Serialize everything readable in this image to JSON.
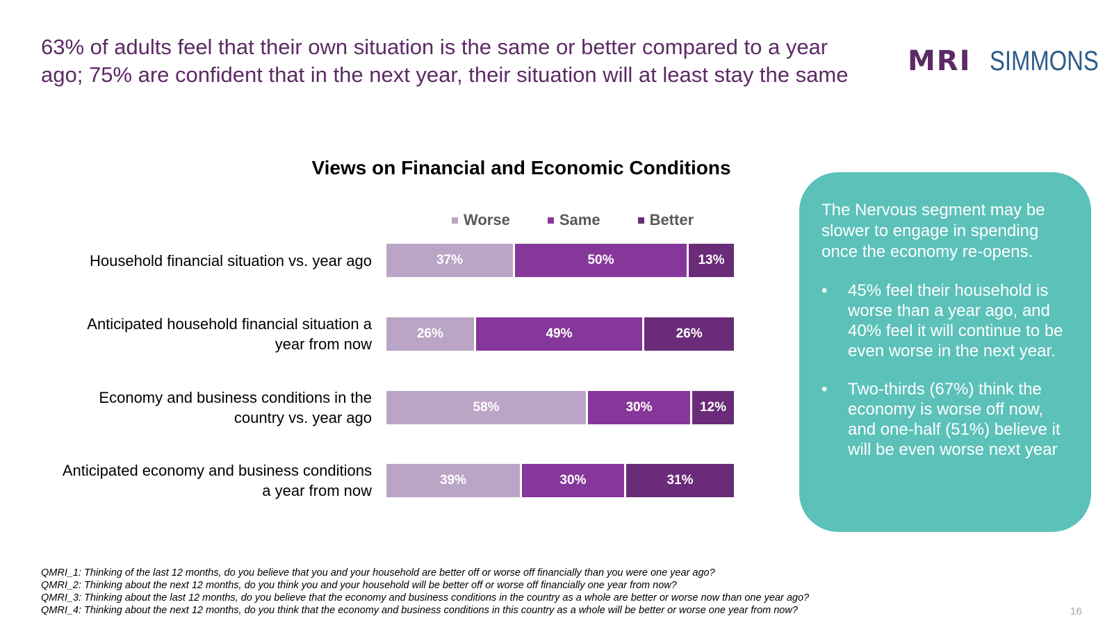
{
  "headline": "63% of adults feel that their own situation is the same or better compared to a year ago; 75% are confident that in the next year, their situation will at least stay the same",
  "logo": {
    "left": "MRI",
    "right": "SIMMONS"
  },
  "chart_data": {
    "type": "bar",
    "orientation": "horizontal",
    "stacked": true,
    "title": "Views on Financial and Economic Conditions",
    "legend_position": "top",
    "categories": [
      [
        "Household financial situation vs. year ago"
      ],
      [
        "Anticipated household financial situation a",
        "year from now"
      ],
      [
        "Economy and business conditions in the",
        "country vs. year ago"
      ],
      [
        "Anticipated economy and business conditions",
        "a year from now"
      ]
    ],
    "series": [
      {
        "name": "Worse",
        "color": "#bba5c6",
        "values": [
          37,
          26,
          58,
          39
        ],
        "labels": [
          "37%",
          "26%",
          "58%",
          "39%"
        ]
      },
      {
        "name": "Same",
        "color": "#86379a",
        "values": [
          50,
          49,
          30,
          30
        ],
        "labels": [
          "50%",
          "49%",
          "30%",
          "30%"
        ]
      },
      {
        "name": "Better",
        "color": "#6a2b78",
        "values": [
          13,
          26,
          12,
          31
        ],
        "labels": [
          "13%",
          "26%",
          "12%",
          "31%"
        ]
      }
    ]
  },
  "callout": {
    "intro": "The Nervous segment may be slower to engage in spending once the economy re-opens.",
    "bullet_char": "•",
    "bullets": [
      "45% feel their household is worse than a year ago, and 40% feel it will continue to be even worse in the next year.",
      "Two-thirds (67%) think the economy is worse off now, and one-half (51%) believe it will be even worse next year"
    ]
  },
  "footnotes": [
    "QMRI_1: Thinking of the last 12 months, do you believe that you and your household are better off or worse off financially than you were one year ago?",
    "QMRI_2: Thinking about the next 12 months, do you think you and your household will be better off or worse off financially one year from now?",
    "QMRI_3: Thinking about the last 12 months, do you believe that the economy and business conditions in the country as a whole are better or worse now than one year ago?",
    "QMRI_4: Thinking about the next 12 months, do you think that the economy and business conditions in this country as a whole will be better or worse one year from now?"
  ],
  "page_number": "16"
}
